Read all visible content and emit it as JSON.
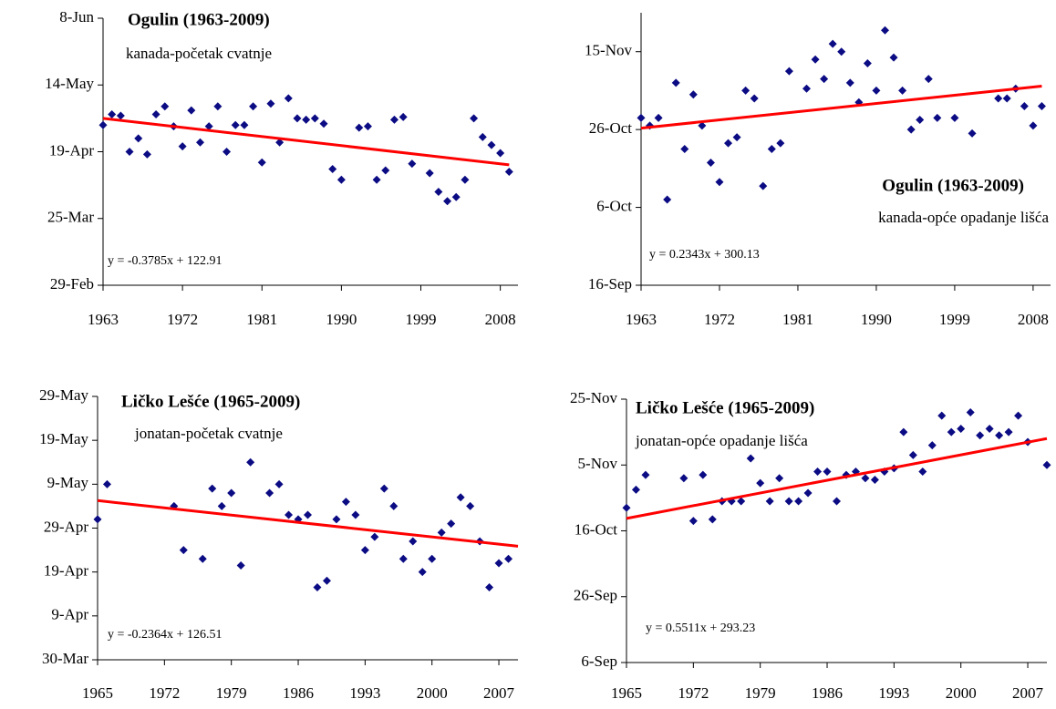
{
  "chart_data": [
    {
      "type": "scatter",
      "title": "Ogulin (1963-2009)",
      "subtitle": "kanada-početak cvatnje",
      "equation": "y = -0.3785x + 122.91",
      "color": "#0b0b84",
      "x": [
        1963,
        1964,
        1965,
        1966,
        1967,
        1968,
        1969,
        1970,
        1971,
        1972,
        1973,
        1974,
        1975,
        1976,
        1977,
        1978,
        1979,
        1980,
        1981,
        1982,
        1983,
        1984,
        1985,
        1986,
        1987,
        1988,
        1989,
        1990,
        1992,
        1993,
        1994,
        1995,
        1996,
        1997,
        1998,
        2000,
        2001,
        2002,
        2003,
        2004,
        2005,
        2006,
        2007,
        2008,
        2009
      ],
      "values": [
        120,
        124,
        123.5,
        110,
        115,
        109,
        124,
        127,
        119.5,
        112,
        125.5,
        113.5,
        119.5,
        127,
        110,
        120,
        120,
        127,
        106,
        128,
        113.5,
        130,
        122.5,
        122,
        122.5,
        120.5,
        103.5,
        99.5,
        119,
        119.5,
        99.5,
        103,
        122,
        123,
        105.5,
        102,
        95,
        91.5,
        93,
        99.5,
        122.5,
        115.5,
        112.5,
        109.5,
        102.5
      ],
      "trendline": {
        "x": [
          1963,
          2009
        ],
        "values": [
          122.5,
          105.1
        ],
        "color": "#ff0000"
      },
      "xlim": [
        1963,
        2010
      ],
      "xticks": [
        1963,
        1972,
        1981,
        1990,
        1999,
        2008
      ],
      "ylim": [
        60,
        160
      ],
      "yticks": [
        {
          "value": 60,
          "label": "29-Feb"
        },
        {
          "value": 85,
          "label": "25-Mar"
        },
        {
          "value": 110,
          "label": "19-Apr"
        },
        {
          "value": 135,
          "label": "14-May"
        },
        {
          "value": 160,
          "label": "8-Jun"
        }
      ]
    },
    {
      "type": "scatter",
      "title": "Ogulin (1963-2009)",
      "subtitle": "kanada-opće opadanje lišća",
      "equation": "y = 0.2343x + 300.13",
      "color": "#0b0b84",
      "x": [
        1963,
        1964,
        1965,
        1966,
        1967,
        1968,
        1969,
        1970,
        1971,
        1972,
        1973,
        1974,
        1975,
        1976,
        1977,
        1978,
        1979,
        1980,
        1982,
        1983,
        1984,
        1985,
        1986,
        1987,
        1988,
        1989,
        1990,
        1991,
        1992,
        1993,
        1994,
        1995,
        1996,
        1997,
        1999,
        2001,
        2004,
        2005,
        2006,
        2007,
        2008,
        2009
      ],
      "values": [
        303,
        301,
        303,
        282,
        312,
        295,
        309,
        301,
        291.5,
        286.5,
        296.5,
        298,
        310,
        308,
        285.5,
        295,
        296.5,
        315,
        310.5,
        318,
        313,
        322,
        320,
        312,
        307,
        317,
        310,
        325.5,
        318.5,
        310,
        300,
        302.5,
        313,
        303,
        303,
        299,
        308,
        308,
        310.5,
        306,
        301,
        306
      ],
      "trendline": {
        "x": [
          1963,
          2009
        ],
        "values": [
          300.36,
          311.15
        ],
        "color": "#ff0000"
      },
      "xlim": [
        1963,
        2010
      ],
      "xticks": [
        1963,
        1972,
        1981,
        1990,
        1999,
        2008
      ],
      "ylim": [
        260,
        330
      ],
      "yticks": [
        {
          "value": 260,
          "label": "16-Sep"
        },
        {
          "value": 280,
          "label": "6-Oct"
        },
        {
          "value": 300,
          "label": "26-Oct"
        },
        {
          "value": 320,
          "label": "15-Nov"
        }
      ]
    },
    {
      "type": "scatter",
      "title": "Ličko Lešće (1965-2009)",
      "subtitle": "jonatan-početak cvatnje",
      "equation": "y = -0.2364x + 126.51",
      "color": "#0b0b84",
      "x": [
        1965,
        1966,
        1973,
        1974,
        1976,
        1977,
        1978,
        1979,
        1980,
        1981,
        1983,
        1984,
        1985,
        1986,
        1987,
        1988,
        1989,
        1990,
        1991,
        1992,
        1993,
        1994,
        1995,
        1996,
        1997,
        1998,
        1999,
        2000,
        2001,
        2002,
        2003,
        2004,
        2005,
        2006,
        2007,
        2008
      ],
      "values": [
        122,
        130,
        125,
        115,
        113,
        129,
        125,
        128,
        111.5,
        135,
        128,
        130,
        123,
        122,
        123,
        106.5,
        108,
        122,
        126,
        123,
        115,
        118,
        129,
        125,
        113,
        117,
        110,
        113,
        119,
        121,
        127,
        125,
        117,
        106.5,
        112,
        113
      ],
      "trendline": {
        "x": [
          1965,
          2009
        ],
        "values": [
          126.27,
          115.87
        ],
        "color": "#ff0000"
      },
      "xlim": [
        1965,
        2009
      ],
      "xticks": [
        1965,
        1972,
        1979,
        1986,
        1993,
        2000,
        2007
      ],
      "ylim": [
        90,
        150
      ],
      "yticks": [
        {
          "value": 90,
          "label": "30-Mar"
        },
        {
          "value": 100,
          "label": "9-Apr"
        },
        {
          "value": 110,
          "label": "19-Apr"
        },
        {
          "value": 120,
          "label": "29-Apr"
        },
        {
          "value": 130,
          "label": "9-May"
        },
        {
          "value": 140,
          "label": "19-May"
        },
        {
          "value": 150,
          "label": "29-May"
        }
      ]
    },
    {
      "type": "scatter",
      "title": "Ličko Lešće (1965-2009)",
      "subtitle": "jonatan-opće opadanje lišća",
      "equation": "y = 0.5511x + 293.23",
      "color": "#0b0b84",
      "x": [
        1965,
        1966,
        1967,
        1971,
        1972,
        1973,
        1974,
        1975,
        1976,
        1977,
        1978,
        1979,
        1980,
        1981,
        1982,
        1983,
        1984,
        1985,
        1986,
        1987,
        1988,
        1989,
        1990,
        1991,
        1992,
        1993,
        1994,
        1995,
        1996,
        1997,
        1998,
        1999,
        2000,
        2001,
        2002,
        2003,
        2004,
        2005,
        2006,
        2007,
        2009
      ],
      "values": [
        297,
        302.5,
        307,
        306,
        293,
        307,
        293.5,
        299,
        299,
        299,
        312,
        304.5,
        299,
        306,
        299,
        299,
        301.5,
        308,
        308,
        299,
        307,
        308,
        306,
        305.5,
        308,
        309,
        320,
        313,
        308,
        316,
        325,
        320,
        321,
        326,
        319,
        321,
        319,
        320,
        325,
        317,
        310
      ],
      "trendline": {
        "x": [
          1965,
          2009
        ],
        "values": [
          293.78,
          318.03
        ],
        "color": "#ff0000"
      },
      "xlim": [
        1965,
        2009
      ],
      "xticks": [
        1965,
        1972,
        1979,
        1986,
        1993,
        2000,
        2007
      ],
      "ylim": [
        250,
        330
      ],
      "yticks": [
        {
          "value": 250,
          "label": "6-Sep"
        },
        {
          "value": 270,
          "label": "26-Sep"
        },
        {
          "value": 290,
          "label": "16-Oct"
        },
        {
          "value": 310,
          "label": "5-Nov"
        },
        {
          "value": 330,
          "label": "25-Nov"
        }
      ]
    }
  ]
}
